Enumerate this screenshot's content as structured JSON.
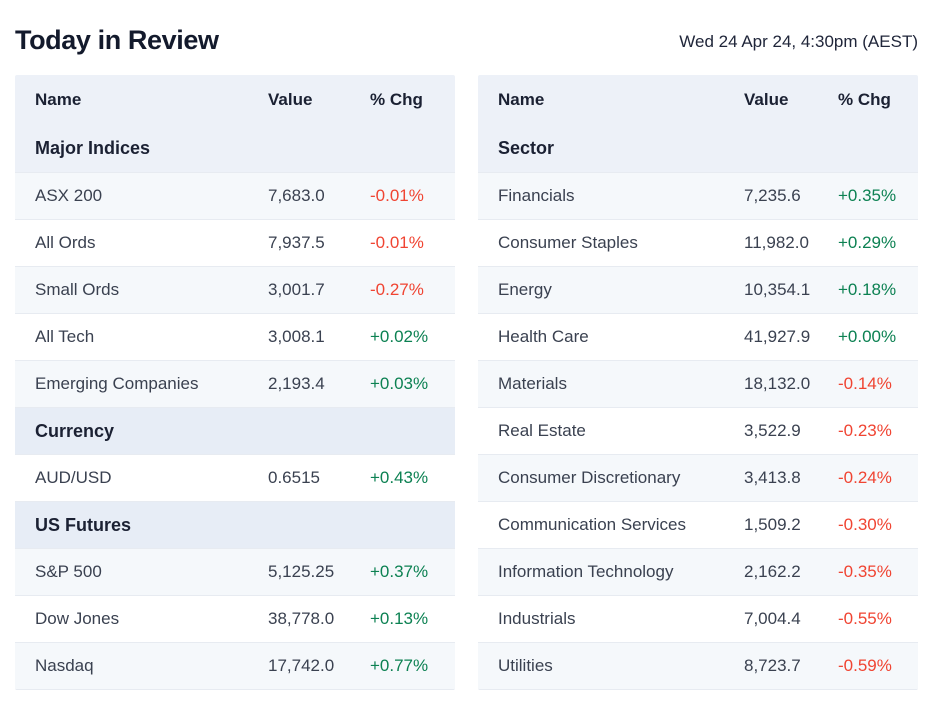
{
  "page": {
    "title": "Today in Review",
    "timestamp": "Wed 24 Apr 24, 4:30pm (AEST)"
  },
  "colors": {
    "positive": "#0c8152",
    "negative": "#f04432",
    "header_bg": "#edf1f8",
    "section_bg": "#e7edf6",
    "row_alt_bg": "#f5f8fb"
  },
  "columns": [
    "Name",
    "Value",
    "% Chg"
  ],
  "left_table": {
    "sections": [
      {
        "label": "Major Indices",
        "rows": [
          {
            "name": "ASX 200",
            "value": "7,683.0",
            "chg": "-0.01%",
            "dir": "down"
          },
          {
            "name": "All Ords",
            "value": "7,937.5",
            "chg": "-0.01%",
            "dir": "down"
          },
          {
            "name": "Small Ords",
            "value": "3,001.7",
            "chg": "-0.27%",
            "dir": "down"
          },
          {
            "name": "All Tech",
            "value": "3,008.1",
            "chg": "+0.02%",
            "dir": "up"
          },
          {
            "name": "Emerging Companies",
            "value": "2,193.4",
            "chg": "+0.03%",
            "dir": "up"
          }
        ]
      },
      {
        "label": "Currency",
        "rows": [
          {
            "name": "AUD/USD",
            "value": "0.6515",
            "chg": "+0.43%",
            "dir": "up"
          }
        ]
      },
      {
        "label": "US Futures",
        "rows": [
          {
            "name": "S&P 500",
            "value": "5,125.25",
            "chg": "+0.37%",
            "dir": "up"
          },
          {
            "name": "Dow Jones",
            "value": "38,778.0",
            "chg": "+0.13%",
            "dir": "up"
          },
          {
            "name": "Nasdaq",
            "value": "17,742.0",
            "chg": "+0.77%",
            "dir": "up"
          }
        ]
      }
    ]
  },
  "right_table": {
    "sections": [
      {
        "label": "Sector",
        "rows": [
          {
            "name": "Financials",
            "value": "7,235.6",
            "chg": "+0.35%",
            "dir": "up"
          },
          {
            "name": "Consumer Staples",
            "value": "11,982.0",
            "chg": "+0.29%",
            "dir": "up"
          },
          {
            "name": "Energy",
            "value": "10,354.1",
            "chg": "+0.18%",
            "dir": "up"
          },
          {
            "name": "Health Care",
            "value": "41,927.9",
            "chg": "+0.00%",
            "dir": "up"
          },
          {
            "name": "Materials",
            "value": "18,132.0",
            "chg": "-0.14%",
            "dir": "down"
          },
          {
            "name": "Real Estate",
            "value": "3,522.9",
            "chg": "-0.23%",
            "dir": "down"
          },
          {
            "name": "Consumer Discretionary",
            "value": "3,413.8",
            "chg": "-0.24%",
            "dir": "down"
          },
          {
            "name": "Communication Services",
            "value": "1,509.2",
            "chg": "-0.30%",
            "dir": "down"
          },
          {
            "name": "Information Technology",
            "value": "2,162.2",
            "chg": "-0.35%",
            "dir": "down"
          },
          {
            "name": "Industrials",
            "value": "7,004.4",
            "chg": "-0.55%",
            "dir": "down"
          },
          {
            "name": "Utilities",
            "value": "8,723.7",
            "chg": "-0.59%",
            "dir": "down"
          }
        ]
      }
    ]
  }
}
